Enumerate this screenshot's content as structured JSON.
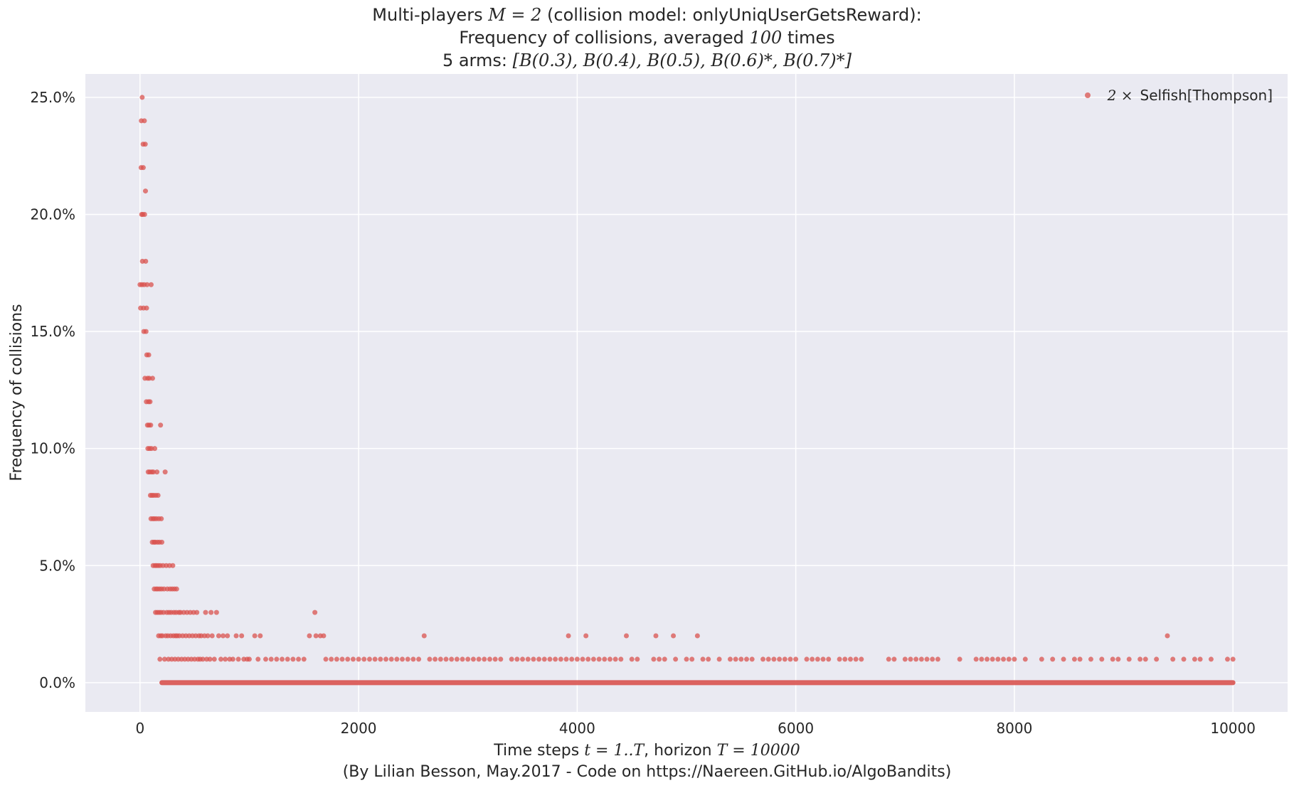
{
  "header": {
    "line1_prefix": "Multi-players ",
    "line1_math": "M = 2",
    "line1_suffix": " (collision model: onlyUniqUserGetsReward):",
    "line2_prefix": "Frequency of collisions, averaged ",
    "line2_math": "100",
    "line2_suffix": " times",
    "line3_prefix": "5 arms: ",
    "line3_math": "[B(0.3), B(0.4), B(0.5), B(0.6)*, B(0.7)*]"
  },
  "axes": {
    "ylabel": "Frequency of collisions",
    "xlabel_prefix": "Time steps ",
    "xlabel_math1": "t = 1..T",
    "xlabel_mid": ", horizon ",
    "xlabel_math2": "T = 10000",
    "credit": "(By Lilian Besson, May.2017 - Code on https://Naereen.GitHub.io/AlgoBandits)"
  },
  "legend": {
    "math": "2 ×",
    "label": " Selfish[Thompson]"
  },
  "colors": {
    "plot_bg": "#eaeaf2",
    "grid": "#ffffff",
    "marker": "#d9534f"
  },
  "chart_data": {
    "type": "scatter",
    "xlim": [
      -500,
      10500
    ],
    "ylim": [
      -0.0125,
      0.26
    ],
    "x_ticks": [
      0,
      2000,
      4000,
      6000,
      8000,
      10000
    ],
    "x_tick_labels": [
      "0",
      "2000",
      "4000",
      "6000",
      "8000",
      "10000"
    ],
    "y_ticks": [
      0,
      0.05,
      0.1,
      0.15,
      0.2,
      0.25
    ],
    "y_tick_labels": [
      "0.0%",
      "5.0%",
      "10.0%",
      "15.0%",
      "20.0%",
      "25.0%"
    ],
    "grid": true,
    "legend_position": "top-right",
    "series": [
      {
        "name": "2 × Selfish[Thompson]",
        "points": [
          [
            0,
            0.17
          ],
          [
            5,
            0.16
          ],
          [
            10,
            0.22
          ],
          [
            12,
            0.24
          ],
          [
            15,
            0.2
          ],
          [
            18,
            0.17
          ],
          [
            20,
            0.25
          ],
          [
            22,
            0.18
          ],
          [
            25,
            0.2
          ],
          [
            28,
            0.23
          ],
          [
            30,
            0.22
          ],
          [
            32,
            0.16
          ],
          [
            35,
            0.15
          ],
          [
            38,
            0.17
          ],
          [
            40,
            0.24
          ],
          [
            42,
            0.2
          ],
          [
            45,
            0.13
          ],
          [
            48,
            0.23
          ],
          [
            50,
            0.21
          ],
          [
            52,
            0.18
          ],
          [
            55,
            0.15
          ],
          [
            58,
            0.12
          ],
          [
            60,
            0.16
          ],
          [
            62,
            0.14
          ],
          [
            65,
            0.17
          ],
          [
            68,
            0.11
          ],
          [
            70,
            0.13
          ],
          [
            72,
            0.1
          ],
          [
            75,
            0.09
          ],
          [
            78,
            0.12
          ],
          [
            80,
            0.14
          ],
          [
            82,
            0.11
          ],
          [
            85,
            0.13
          ],
          [
            88,
            0.1
          ],
          [
            90,
            0.09
          ],
          [
            92,
            0.12
          ],
          [
            95,
            0.08
          ],
          [
            98,
            0.11
          ],
          [
            100,
            0.07
          ],
          [
            102,
            0.17
          ],
          [
            105,
            0.1
          ],
          [
            108,
            0.09
          ],
          [
            110,
            0.08
          ],
          [
            112,
            0.06
          ],
          [
            115,
            0.13
          ],
          [
            118,
            0.07
          ],
          [
            120,
            0.05
          ],
          [
            122,
            0.09
          ],
          [
            125,
            0.08
          ],
          [
            128,
            0.06
          ],
          [
            130,
            0.04
          ],
          [
            132,
            0.07
          ],
          [
            135,
            0.1
          ],
          [
            138,
            0.05
          ],
          [
            140,
            0.06
          ],
          [
            142,
            0.03
          ],
          [
            145,
            0.08
          ],
          [
            148,
            0.04
          ],
          [
            150,
            0.07
          ],
          [
            152,
            0.05
          ],
          [
            155,
            0.09
          ],
          [
            158,
            0.03
          ],
          [
            160,
            0.06
          ],
          [
            162,
            0.04
          ],
          [
            165,
            0.08
          ],
          [
            168,
            0.05
          ],
          [
            170,
            0.02
          ],
          [
            172,
            0.07
          ],
          [
            175,
            0.03
          ],
          [
            178,
            0.06
          ],
          [
            180,
            0.04
          ],
          [
            182,
            0.01
          ],
          [
            185,
            0.05
          ],
          [
            188,
            0.11
          ],
          [
            190,
            0.02
          ],
          [
            192,
            0.03
          ],
          [
            195,
            0.07
          ],
          [
            198,
            0.04
          ],
          [
            200,
            0.06
          ],
          [
            205,
            0.02
          ],
          [
            210,
            0.05
          ],
          [
            215,
            0.03
          ],
          [
            220,
            0.04
          ],
          [
            225,
            0.01
          ],
          [
            230,
            0.09
          ],
          [
            235,
            0.02
          ],
          [
            240,
            0.05
          ],
          [
            245,
            0.03
          ],
          [
            250,
            0.04
          ],
          [
            255,
            0.02
          ],
          [
            260,
            0.01
          ],
          [
            265,
            0.03
          ],
          [
            270,
            0.05
          ],
          [
            275,
            0.04
          ],
          [
            280,
            0.02
          ],
          [
            285,
            0.03
          ],
          [
            290,
            0.01
          ],
          [
            295,
            0.04
          ],
          [
            300,
            0.05
          ],
          [
            305,
            0.02
          ],
          [
            310,
            0.03
          ],
          [
            315,
            0.04
          ],
          [
            320,
            0.01
          ],
          [
            325,
            0.02
          ],
          [
            330,
            0.03
          ],
          [
            335,
            0.04
          ],
          [
            340,
            0.02
          ],
          [
            350,
            0.01
          ],
          [
            355,
            0.03
          ],
          [
            360,
            0.02
          ],
          [
            370,
            0.03
          ],
          [
            380,
            0.01
          ],
          [
            390,
            0.02
          ],
          [
            400,
            0.03
          ],
          [
            410,
            0.01
          ],
          [
            420,
            0.02
          ],
          [
            430,
            0.03
          ],
          [
            440,
            0.01
          ],
          [
            450,
            0.02
          ],
          [
            460,
            0.03
          ],
          [
            470,
            0.01
          ],
          [
            480,
            0.02
          ],
          [
            490,
            0.03
          ],
          [
            500,
            0.01
          ],
          [
            510,
            0.02
          ],
          [
            520,
            0.03
          ],
          [
            530,
            0.01
          ],
          [
            540,
            0.02
          ],
          [
            550,
            0.01
          ],
          [
            560,
            0.02
          ],
          [
            575,
            0.01
          ],
          [
            590,
            0.02
          ],
          [
            600,
            0.03
          ],
          [
            610,
            0.01
          ],
          [
            620,
            0.02
          ],
          [
            640,
            0.01
          ],
          [
            650,
            0.03
          ],
          [
            660,
            0.02
          ],
          [
            680,
            0.01
          ],
          [
            700,
            0.03
          ],
          [
            720,
            0.02
          ],
          [
            740,
            0.01
          ],
          [
            760,
            0.02
          ],
          [
            780,
            0.01
          ],
          [
            800,
            0.02
          ],
          [
            820,
            0.01
          ],
          [
            850,
            0.01
          ],
          [
            880,
            0.02
          ],
          [
            900,
            0.01
          ],
          [
            930,
            0.02
          ],
          [
            950,
            0.01
          ],
          [
            980,
            0.01
          ],
          [
            1000,
            0.01
          ],
          [
            1050,
            0.02
          ],
          [
            1080,
            0.01
          ],
          [
            1100,
            0.02
          ],
          [
            1150,
            0.01
          ],
          [
            1200,
            0.01
          ],
          [
            1250,
            0.01
          ],
          [
            1300,
            0.01
          ],
          [
            1350,
            0.01
          ],
          [
            1400,
            0.01
          ],
          [
            1450,
            0.01
          ],
          [
            1500,
            0.01
          ],
          [
            1550,
            0.02
          ],
          [
            1600,
            0.03
          ],
          [
            1610,
            0.02
          ],
          [
            1650,
            0.02
          ],
          [
            1680,
            0.02
          ],
          [
            1700,
            0.01
          ],
          [
            1750,
            0.01
          ],
          [
            1800,
            0.01
          ],
          [
            1850,
            0.01
          ],
          [
            1900,
            0.01
          ],
          [
            1950,
            0.01
          ],
          [
            2000,
            0.01
          ],
          [
            2050,
            0.01
          ],
          [
            2100,
            0.01
          ],
          [
            2150,
            0.01
          ],
          [
            2200,
            0.01
          ],
          [
            2250,
            0.01
          ],
          [
            2300,
            0.01
          ],
          [
            2350,
            0.01
          ],
          [
            2400,
            0.01
          ],
          [
            2450,
            0.01
          ],
          [
            2500,
            0.01
          ],
          [
            2550,
            0.01
          ],
          [
            2600,
            0.02
          ],
          [
            2650,
            0.01
          ],
          [
            2700,
            0.01
          ],
          [
            2750,
            0.01
          ],
          [
            2800,
            0.01
          ],
          [
            2850,
            0.01
          ],
          [
            2900,
            0.01
          ],
          [
            2950,
            0.01
          ],
          [
            3000,
            0.01
          ],
          [
            3050,
            0.01
          ],
          [
            3100,
            0.01
          ],
          [
            3150,
            0.01
          ],
          [
            3200,
            0.01
          ],
          [
            3250,
            0.01
          ],
          [
            3300,
            0.01
          ],
          [
            3400,
            0.01
          ],
          [
            3450,
            0.01
          ],
          [
            3500,
            0.01
          ],
          [
            3550,
            0.01
          ],
          [
            3600,
            0.01
          ],
          [
            3650,
            0.01
          ],
          [
            3700,
            0.01
          ],
          [
            3750,
            0.01
          ],
          [
            3800,
            0.01
          ],
          [
            3850,
            0.01
          ],
          [
            3900,
            0.01
          ],
          [
            3920,
            0.02
          ],
          [
            3950,
            0.01
          ],
          [
            4000,
            0.01
          ],
          [
            4050,
            0.01
          ],
          [
            4080,
            0.02
          ],
          [
            4100,
            0.01
          ],
          [
            4150,
            0.01
          ],
          [
            4200,
            0.01
          ],
          [
            4250,
            0.01
          ],
          [
            4300,
            0.01
          ],
          [
            4350,
            0.01
          ],
          [
            4400,
            0.01
          ],
          [
            4450,
            0.02
          ],
          [
            4500,
            0.01
          ],
          [
            4550,
            0.01
          ],
          [
            4700,
            0.01
          ],
          [
            4720,
            0.02
          ],
          [
            4750,
            0.01
          ],
          [
            4800,
            0.01
          ],
          [
            4880,
            0.02
          ],
          [
            4900,
            0.01
          ],
          [
            5000,
            0.01
          ],
          [
            5050,
            0.01
          ],
          [
            5100,
            0.02
          ],
          [
            5150,
            0.01
          ],
          [
            5200,
            0.01
          ],
          [
            5300,
            0.01
          ],
          [
            5400,
            0.01
          ],
          [
            5450,
            0.01
          ],
          [
            5500,
            0.01
          ],
          [
            5550,
            0.01
          ],
          [
            5600,
            0.01
          ],
          [
            5700,
            0.01
          ],
          [
            5750,
            0.01
          ],
          [
            5800,
            0.01
          ],
          [
            5850,
            0.01
          ],
          [
            5900,
            0.01
          ],
          [
            5950,
            0.01
          ],
          [
            6000,
            0.01
          ],
          [
            6100,
            0.01
          ],
          [
            6150,
            0.01
          ],
          [
            6200,
            0.01
          ],
          [
            6250,
            0.01
          ],
          [
            6300,
            0.01
          ],
          [
            6400,
            0.01
          ],
          [
            6450,
            0.01
          ],
          [
            6500,
            0.01
          ],
          [
            6550,
            0.01
          ],
          [
            6600,
            0.01
          ],
          [
            6850,
            0.01
          ],
          [
            6900,
            0.01
          ],
          [
            7000,
            0.01
          ],
          [
            7050,
            0.01
          ],
          [
            7100,
            0.01
          ],
          [
            7150,
            0.01
          ],
          [
            7200,
            0.01
          ],
          [
            7250,
            0.01
          ],
          [
            7300,
            0.01
          ],
          [
            7500,
            0.01
          ],
          [
            7650,
            0.01
          ],
          [
            7700,
            0.01
          ],
          [
            7750,
            0.01
          ],
          [
            7800,
            0.01
          ],
          [
            7850,
            0.01
          ],
          [
            7900,
            0.01
          ],
          [
            7950,
            0.01
          ],
          [
            8000,
            0.01
          ],
          [
            8100,
            0.01
          ],
          [
            8250,
            0.01
          ],
          [
            8350,
            0.01
          ],
          [
            8450,
            0.01
          ],
          [
            8550,
            0.01
          ],
          [
            8600,
            0.01
          ],
          [
            8700,
            0.01
          ],
          [
            8800,
            0.01
          ],
          [
            8900,
            0.01
          ],
          [
            8950,
            0.01
          ],
          [
            9050,
            0.01
          ],
          [
            9150,
            0.01
          ],
          [
            9200,
            0.01
          ],
          [
            9300,
            0.01
          ],
          [
            9400,
            0.02
          ],
          [
            9450,
            0.01
          ],
          [
            9550,
            0.01
          ],
          [
            9650,
            0.01
          ],
          [
            9700,
            0.01
          ],
          [
            9800,
            0.01
          ],
          [
            9950,
            0.01
          ],
          [
            10000,
            0.01
          ]
        ],
        "zero_band_x": [
          200,
          10000
        ]
      }
    ]
  }
}
